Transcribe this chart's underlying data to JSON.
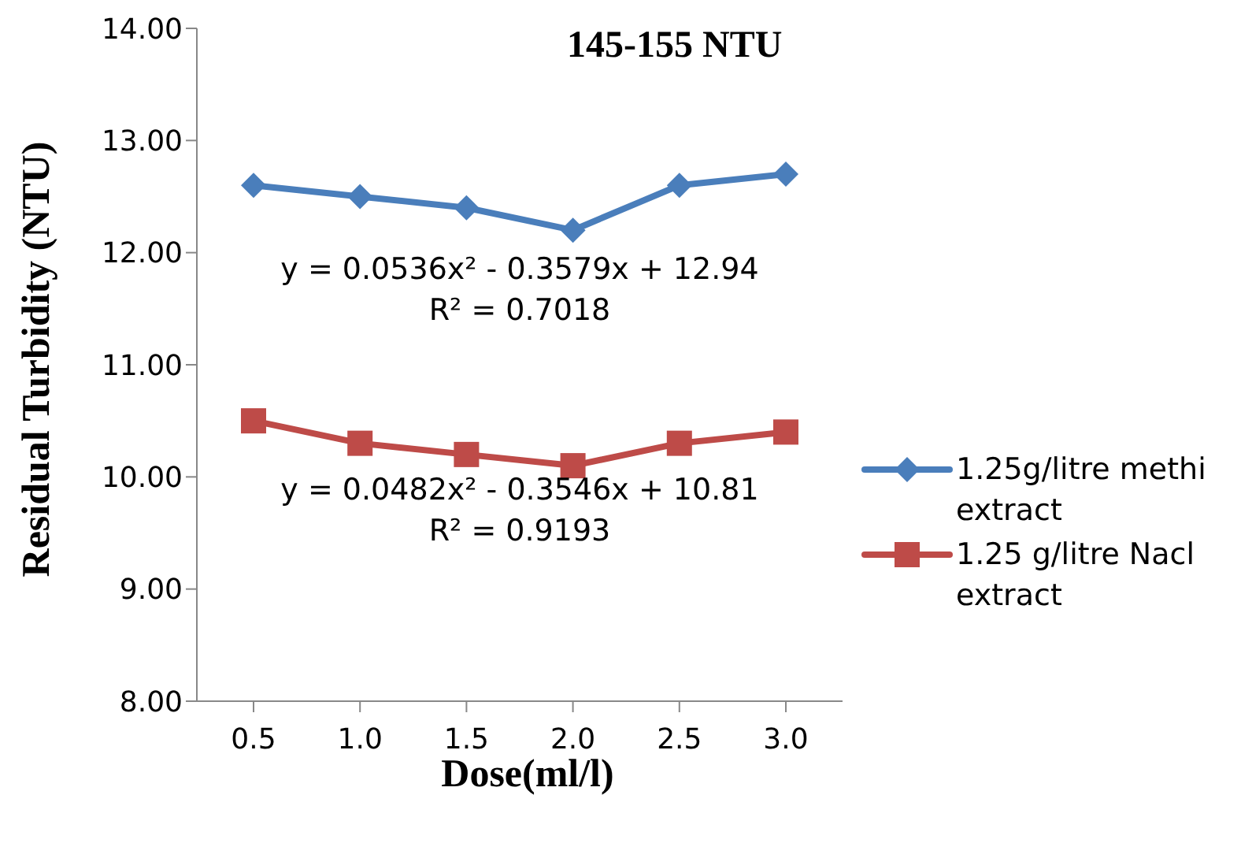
{
  "chart_data": {
    "type": "line",
    "title": "145-155 NTU",
    "xlabel": "Dose(ml/l)",
    "ylabel": "Residual Turbidity (NTU)",
    "categories": [
      "0.5",
      "1.0",
      "1.5",
      "2.0",
      "2.5",
      "3.0"
    ],
    "series": [
      {
        "name": "1.25g/litre methi extract",
        "color": "#4a7ebb",
        "marker": "diamond",
        "values": [
          12.6,
          12.5,
          12.4,
          12.2,
          12.6,
          12.7
        ]
      },
      {
        "name": "1.25 g/litre Nacl extract",
        "color": "#be4b48",
        "marker": "square",
        "values": [
          10.5,
          10.3,
          10.2,
          10.1,
          10.3,
          10.4
        ]
      }
    ],
    "ylim": [
      8,
      14
    ],
    "yticks": [
      {
        "value": 8,
        "label": "8.00"
      },
      {
        "value": 9,
        "label": "9.00"
      },
      {
        "value": 10,
        "label": "10.00"
      },
      {
        "value": 11,
        "label": "11.00"
      },
      {
        "value": 12,
        "label": "12.00"
      },
      {
        "value": 13,
        "label": "13.00"
      },
      {
        "value": 14,
        "label": "14.00"
      }
    ],
    "annotations": [
      "y = 0.0536x² - 0.3579x + 12.94",
      "R² = 0.7018",
      "y = 0.0482x² - 0.3546x + 10.81",
      "R² = 0.9193"
    ],
    "legend": "right",
    "grid": false,
    "line_style": "solid"
  }
}
